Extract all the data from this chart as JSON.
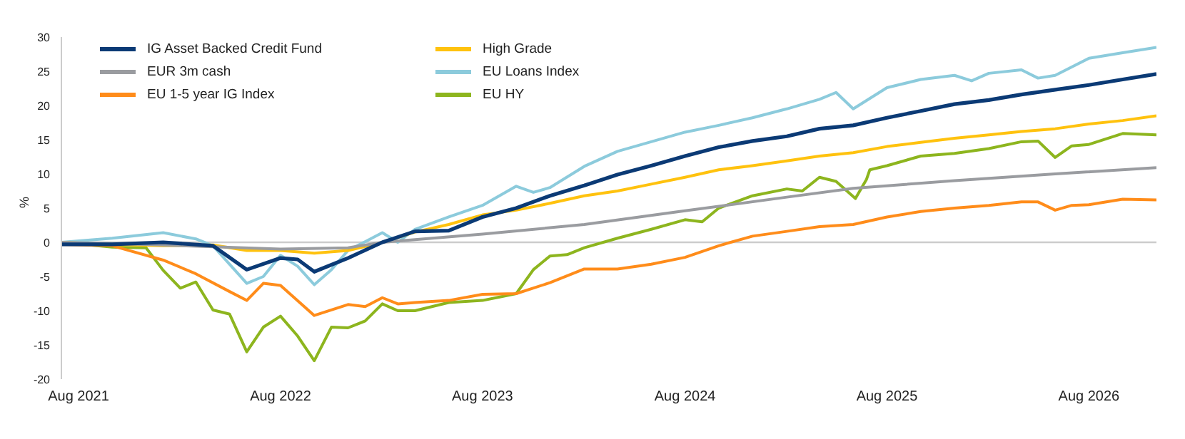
{
  "chart_data": {
    "type": "line",
    "ylabel": "%",
    "xlim": [
      "2021-07",
      "2026-12"
    ],
    "xticks": [
      {
        "value": "2021-08",
        "label": "Aug 2021"
      },
      {
        "value": "2022-08",
        "label": "Aug 2022"
      },
      {
        "value": "2023-08",
        "label": "Aug 2023"
      },
      {
        "value": "2024-08",
        "label": "Aug 2024"
      },
      {
        "value": "2025-08",
        "label": "Aug 2025"
      },
      {
        "value": "2026-08",
        "label": "Aug 2026"
      }
    ],
    "ylim": [
      -20,
      30
    ],
    "yticks": [
      -20,
      -15,
      -10,
      -5,
      0,
      5,
      10,
      15,
      20,
      25,
      30
    ],
    "legend": "top left",
    "marker": "none",
    "line_style": "solid",
    "ref_lines": [
      {
        "axis": "y",
        "value": 0,
        "color": "#cccccc"
      }
    ],
    "series": [
      {
        "name": "IG Asset Backed Credit Fund",
        "color": "#0b3a75",
        "x": [
          "2021-07",
          "2021-10",
          "2022-01",
          "2022-04",
          "2022-06",
          "2022-08",
          "2022-09",
          "2022-10",
          "2022-12",
          "2023-02",
          "2023-04",
          "2023-06",
          "2023-08",
          "2023-10",
          "2023-12",
          "2024-02",
          "2024-04",
          "2024-06",
          "2024-08",
          "2024-10",
          "2024-12",
          "2025-02",
          "2025-04",
          "2025-06",
          "2025-08",
          "2025-10",
          "2025-12",
          "2026-02",
          "2026-04",
          "2026-06",
          "2026-08",
          "2026-10",
          "2026-12"
        ],
        "values": [
          -0.3,
          -0.3,
          0,
          -0.5,
          -4,
          -2.3,
          -2.5,
          -4.3,
          -2.3,
          0,
          1.6,
          1.7,
          3.7,
          5,
          6.8,
          8.3,
          9.9,
          11.2,
          12.6,
          13.9,
          14.8,
          15.5,
          16.6,
          17.1,
          18.2,
          19.2,
          20.2,
          20.8,
          21.6,
          22.3,
          23,
          23.8,
          24.6
        ]
      },
      {
        "name": "EUR 3m cash",
        "color": "#9a9ca0",
        "x": [
          "2021-07",
          "2021-12",
          "2022-08",
          "2022-12",
          "2023-02",
          "2023-08",
          "2024-02",
          "2024-08",
          "2025-02",
          "2025-06",
          "2025-12",
          "2026-06",
          "2026-12"
        ],
        "values": [
          0,
          -0.3,
          -1,
          -0.8,
          0,
          1.2,
          2.6,
          4.6,
          6.6,
          7.9,
          9,
          10,
          10.9
        ]
      },
      {
        "name": "EU 1-5 year IG Index",
        "color": "#ff8c1a",
        "x": [
          "2021-07",
          "2021-10",
          "2022-01",
          "2022-03",
          "2022-05",
          "2022-06",
          "2022-07",
          "2022-08",
          "2022-10",
          "2022-12",
          "2023-01",
          "2023-02",
          "2023-03",
          "2023-04",
          "2023-06",
          "2023-08",
          "2023-10",
          "2023-12",
          "2024-02",
          "2024-04",
          "2024-06",
          "2024-08",
          "2024-10",
          "2024-12",
          "2025-02",
          "2025-04",
          "2025-06",
          "2025-08",
          "2025-10",
          "2025-12",
          "2026-02",
          "2026-04",
          "2026-05",
          "2026-06",
          "2026-07",
          "2026-08",
          "2026-10",
          "2026-12"
        ],
        "values": [
          -0.3,
          -0.5,
          -2.6,
          -4.6,
          -7.2,
          -8.5,
          -6,
          -6.3,
          -10.7,
          -9.1,
          -9.4,
          -8.1,
          -9,
          -8.8,
          -8.5,
          -7.6,
          -7.5,
          -5.9,
          -3.9,
          -3.9,
          -3.2,
          -2.2,
          -0.5,
          0.9,
          1.6,
          2.3,
          2.6,
          3.7,
          4.5,
          5,
          5.4,
          5.9,
          5.9,
          4.7,
          5.4,
          5.5,
          6.3,
          6.2
        ]
      },
      {
        "name": "High Grade",
        "color": "#ffc20e",
        "x": [
          "2021-07",
          "2021-10",
          "2022-01",
          "2022-04",
          "2022-06",
          "2022-08",
          "2022-10",
          "2022-12",
          "2023-02",
          "2023-04",
          "2023-06",
          "2023-08",
          "2023-10",
          "2023-12",
          "2024-02",
          "2024-04",
          "2024-06",
          "2024-08",
          "2024-10",
          "2024-12",
          "2025-02",
          "2025-04",
          "2025-06",
          "2025-08",
          "2025-10",
          "2025-12",
          "2026-02",
          "2026-04",
          "2026-06",
          "2026-08",
          "2026-10",
          "2026-12"
        ],
        "values": [
          0,
          -0.3,
          -0.5,
          -0.4,
          -1.2,
          -1.2,
          -1.6,
          -1.2,
          0,
          1.5,
          2.6,
          4,
          4.7,
          5.7,
          6.8,
          7.5,
          8.5,
          9.5,
          10.6,
          11.2,
          11.9,
          12.6,
          13.1,
          14,
          14.6,
          15.2,
          15.7,
          16.2,
          16.6,
          17.3,
          17.8,
          18.5
        ]
      },
      {
        "name": "EU Loans Index",
        "color": "#8ccbdc",
        "x": [
          "2021-07",
          "2021-10",
          "2022-01",
          "2022-03",
          "2022-04",
          "2022-06",
          "2022-07",
          "2022-08",
          "2022-09",
          "2022-10",
          "2022-11",
          "2022-12",
          "2023-02",
          "2023-03",
          "2023-04",
          "2023-06",
          "2023-08",
          "2023-10",
          "2023-11",
          "2023-12",
          "2024-02",
          "2024-04",
          "2024-06",
          "2024-08",
          "2024-10",
          "2024-12",
          "2025-02",
          "2025-04",
          "2025-05",
          "2025-06",
          "2025-08",
          "2025-10",
          "2025-12",
          "2026-01",
          "2026-02",
          "2026-04",
          "2026-05",
          "2026-06",
          "2026-08",
          "2026-10",
          "2026-12"
        ],
        "values": [
          0,
          0.6,
          1.4,
          0.5,
          -0.5,
          -6,
          -5,
          -1.9,
          -3.5,
          -6.2,
          -4,
          -1.2,
          1.4,
          0,
          1.9,
          3.7,
          5.4,
          8.2,
          7.3,
          8,
          11.1,
          13.3,
          14.7,
          16.1,
          17.1,
          18.2,
          19.5,
          20.9,
          21.9,
          19.5,
          22.6,
          23.8,
          24.4,
          23.6,
          24.7,
          25.2,
          24,
          24.4,
          26.9,
          27.7,
          28.5
        ]
      },
      {
        "name": "EU HY",
        "color": "#8db51e",
        "x": [
          "2021-07",
          "2021-10",
          "2021-12",
          "2022-01",
          "2022-02",
          "2022-03",
          "2022-04",
          "2022-05",
          "2022-06",
          "2022-07",
          "2022-08",
          "2022-09",
          "2022-10",
          "2022-11",
          "2022-12",
          "2023-01",
          "2023-02",
          "2023-03",
          "2023-04",
          "2023-06",
          "2023-08",
          "2023-09",
          "2023-10",
          "2023-11",
          "2023-12",
          "2024-01",
          "2024-02",
          "2024-04",
          "2024-06",
          "2024-08",
          "2024-09",
          "2024-10",
          "2024-12",
          "2025-02",
          "2025-03",
          "2025-04",
          "2025-05",
          "2025-06-05",
          "2025-06-25",
          "2025-07",
          "2025-08",
          "2025-10",
          "2025-12",
          "2026-02",
          "2026-04",
          "2026-05",
          "2026-06",
          "2026-07",
          "2026-08",
          "2026-10",
          "2026-12"
        ],
        "values": [
          0,
          -0.7,
          -0.8,
          -4.1,
          -6.7,
          -5.8,
          -9.9,
          -10.5,
          -16,
          -12.4,
          -10.8,
          -13.7,
          -17.3,
          -12.4,
          -12.5,
          -11.5,
          -9,
          -10,
          -10,
          -8.8,
          -8.5,
          -8,
          -7.5,
          -4,
          -2,
          -1.8,
          -0.8,
          0.6,
          1.9,
          3.3,
          3,
          5,
          6.8,
          7.8,
          7.5,
          9.5,
          8.9,
          6.4,
          9.2,
          10.6,
          11.2,
          12.6,
          13,
          13.7,
          14.7,
          14.8,
          12.4,
          14.1,
          14.3,
          15.9,
          15.7
        ]
      }
    ]
  }
}
